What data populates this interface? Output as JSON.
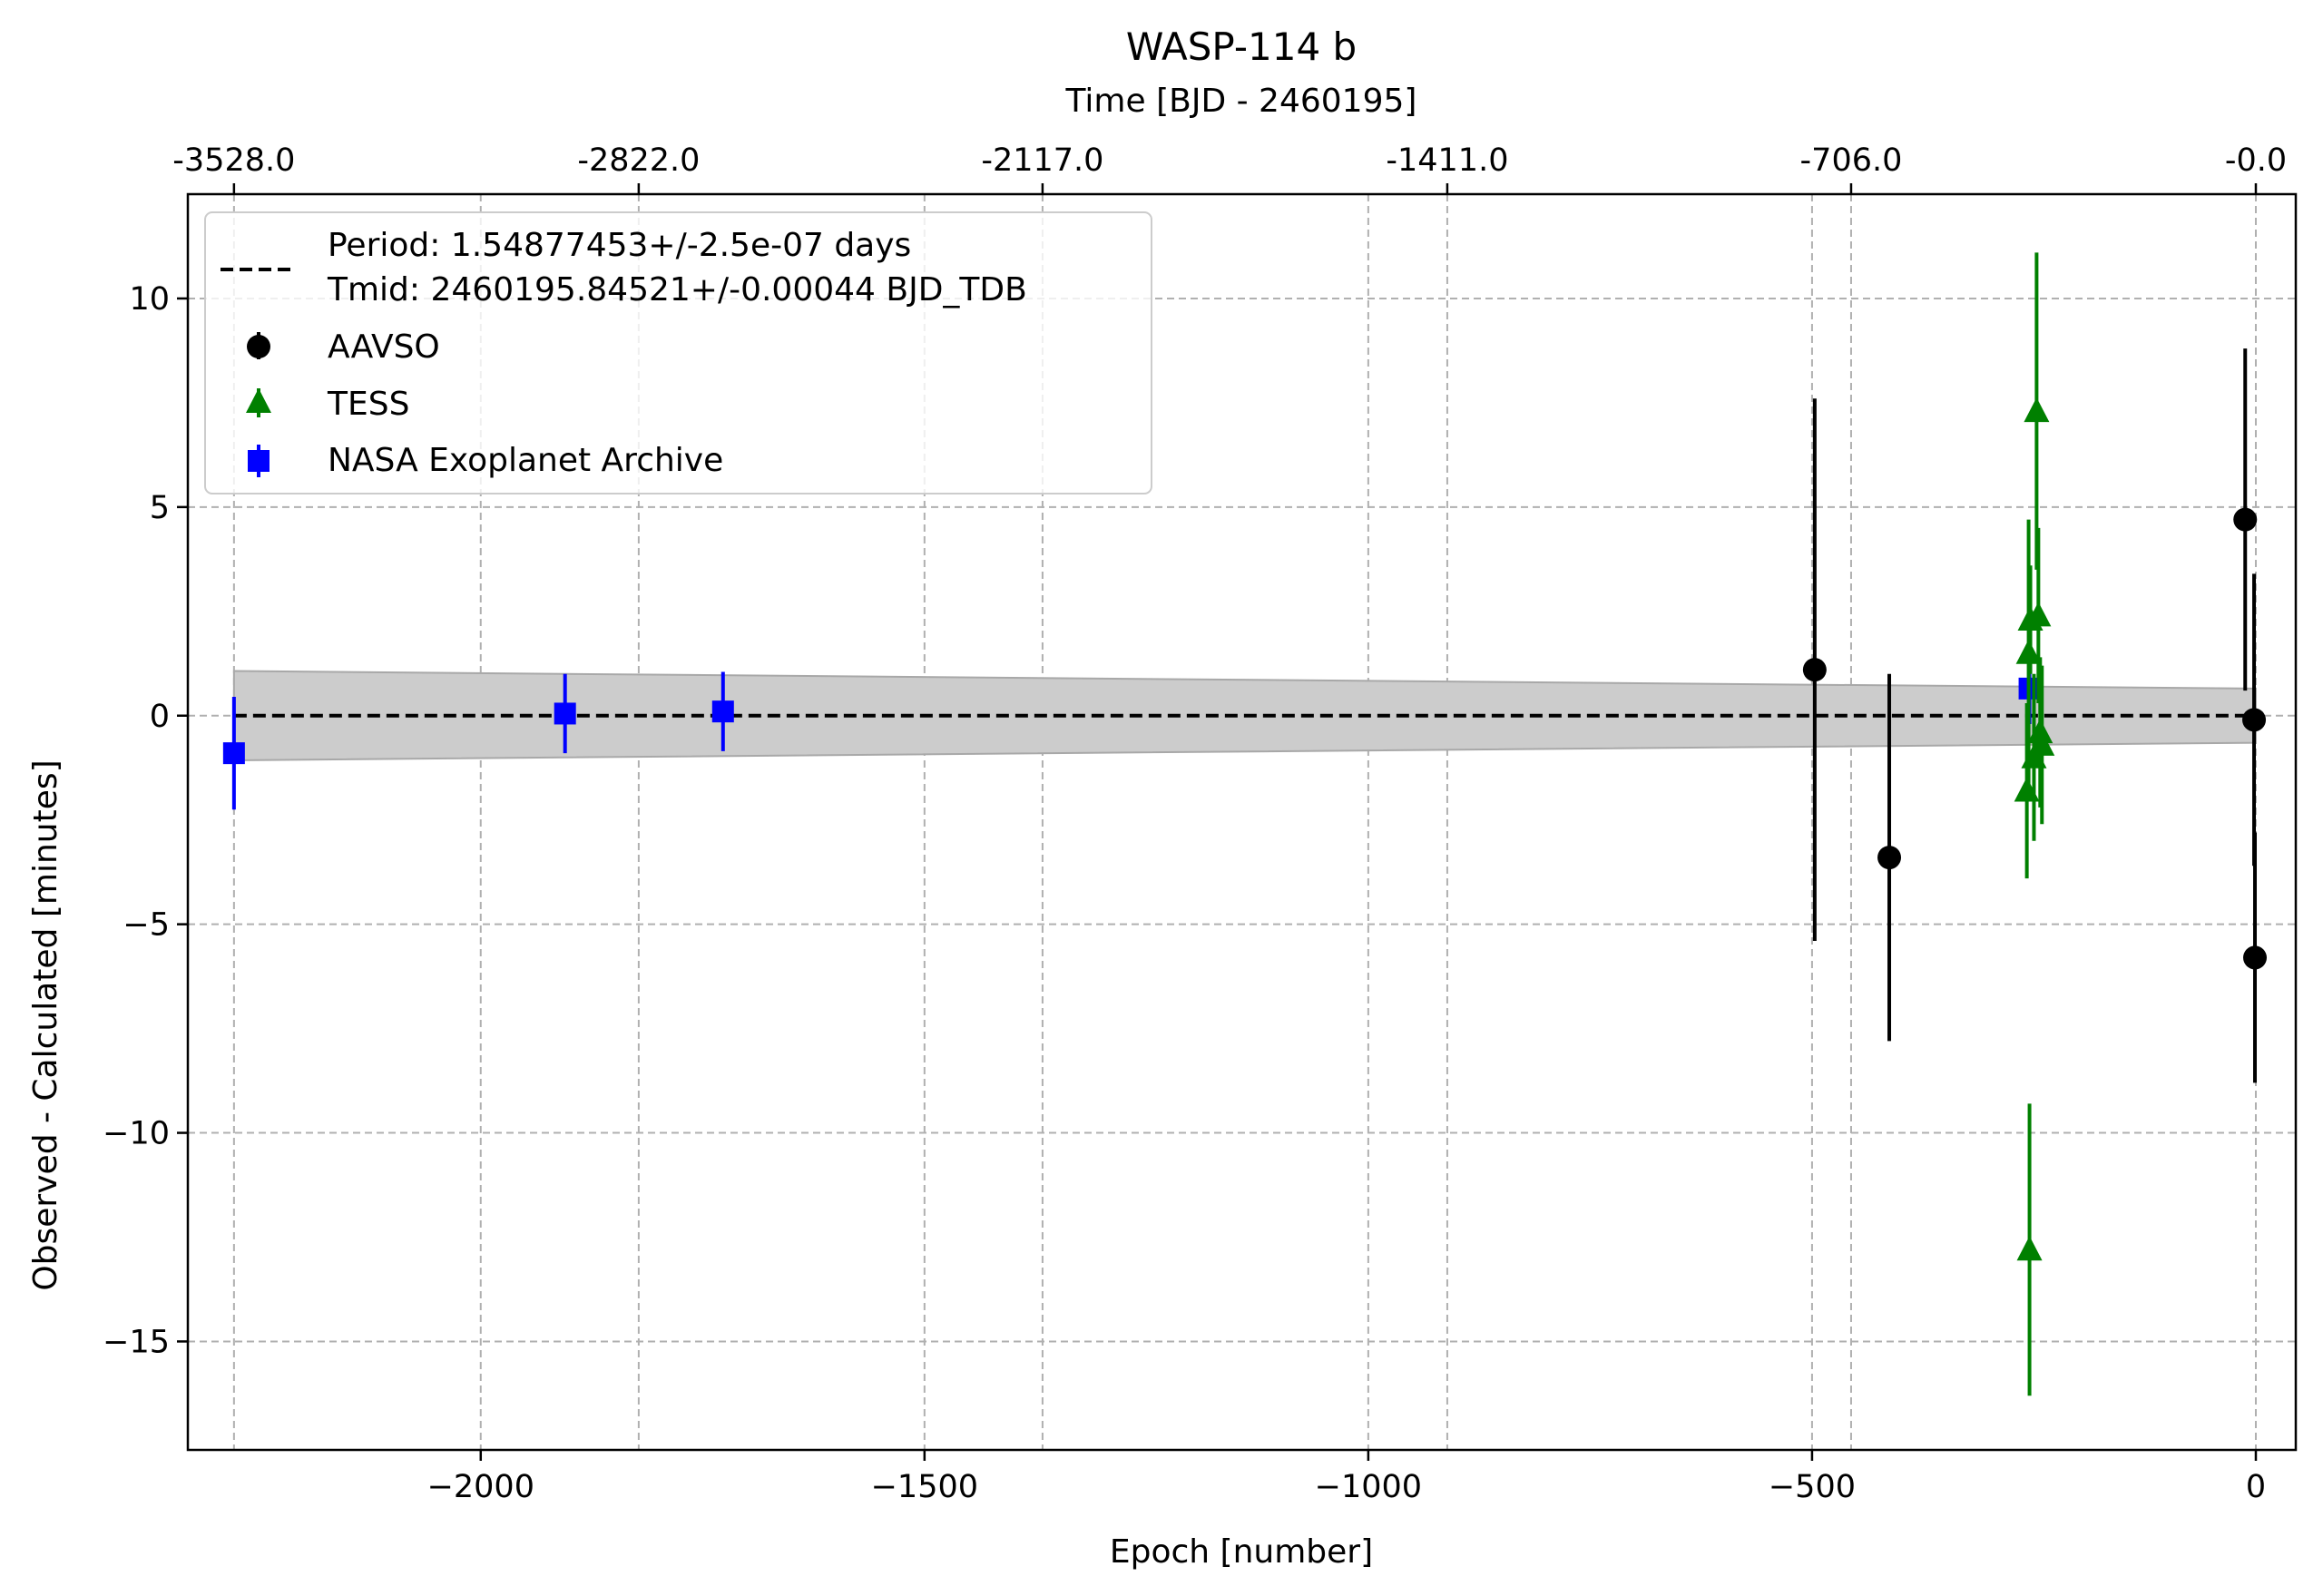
{
  "chart_data": {
    "type": "scatter",
    "title": "WASP-114 b",
    "xlabel": "Epoch [number]",
    "ylabel": "Observed - Calculated [minutes]",
    "top_axis_label": "Time [BJD - 2460195]",
    "xlim": [
      -2330,
      45
    ],
    "ylim": [
      -17.6,
      12.5
    ],
    "x_ticks": [
      -2000,
      -1500,
      -1000,
      -500,
      0
    ],
    "x_tick_labels": [
      "−2000",
      "−1500",
      "−1000",
      "−500",
      "0"
    ],
    "y_ticks": [
      10,
      5,
      0,
      -5,
      -10,
      -15
    ],
    "y_tick_labels": [
      "10",
      "5",
      "0",
      "−5",
      "−10",
      "−15"
    ],
    "top_ticks": [
      {
        "epoch": -2278,
        "label": "-3528.0"
      },
      {
        "epoch": -1822,
        "label": "-2822.0"
      },
      {
        "epoch": -1367,
        "label": "-2117.0"
      },
      {
        "epoch": -911,
        "label": "-1411.0"
      },
      {
        "epoch": -456,
        "label": "-706.0"
      },
      {
        "epoch": 0,
        "label": "-0.0"
      }
    ],
    "grid": true,
    "legend_position": "top-left",
    "model": {
      "label_period": "Period: 1.54877453+/-2.5e-07 days",
      "label_tmid": "Tmid: 2460195.84521+/-0.00044 BJD_TDB",
      "band_x": [
        -2278,
        0
      ],
      "band_upper": [
        1.07,
        0.65
      ],
      "band_lower": [
        -1.07,
        -0.65
      ],
      "line_color": "#000000",
      "band_color": "#cccccc"
    },
    "series": [
      {
        "name": "AAVSO",
        "marker": "circle",
        "color": "#000000",
        "points": [
          {
            "x": -497,
            "y": 1.1,
            "err": 6.5
          },
          {
            "x": -413,
            "y": -3.4,
            "err": 4.4
          },
          {
            "x": -12,
            "y": 4.7,
            "err": 4.1
          },
          {
            "x": -2,
            "y": -0.1,
            "err": 3.5
          },
          {
            "x": -1,
            "y": -5.8,
            "err": 3.0
          }
        ]
      },
      {
        "name": "TESS",
        "marker": "triangle",
        "color": "#008000",
        "points": [
          {
            "x": -255,
            "y": -12.8,
            "err": 3.5
          },
          {
            "x": -258,
            "y": -1.8,
            "err": 2.1
          },
          {
            "x": -256,
            "y": 1.5,
            "err": 3.2
          },
          {
            "x": -254,
            "y": 2.3,
            "err": 1.3
          },
          {
            "x": -250,
            "y": -1.0,
            "err": 2.0
          },
          {
            "x": -247,
            "y": 7.3,
            "err": 3.8
          },
          {
            "x": -245,
            "y": 2.4,
            "err": 2.1
          },
          {
            "x": -243,
            "y": -0.4,
            "err": 1.8
          },
          {
            "x": -241,
            "y": -0.7,
            "err": 1.9
          }
        ]
      },
      {
        "name": "NASA Exoplanet Archive",
        "marker": "square",
        "color": "#0000ff",
        "points": [
          {
            "x": -2278,
            "y": -0.9,
            "err": 1.35
          },
          {
            "x": -1905,
            "y": 0.05,
            "err": 0.95
          },
          {
            "x": -1727,
            "y": 0.1,
            "err": 0.95
          },
          {
            "x": -255,
            "y": 0.65,
            "err": 0.85
          }
        ]
      }
    ]
  }
}
